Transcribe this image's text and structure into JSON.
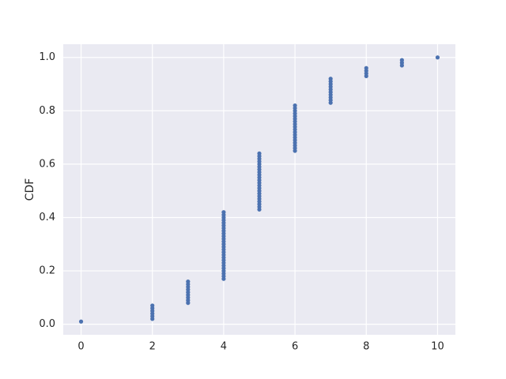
{
  "chart_data": {
    "type": "scatter",
    "ylabel": "CDF",
    "color": "#4c72b0",
    "grid": true,
    "x": [
      0,
      2,
      2,
      2,
      2,
      2,
      2,
      3,
      3,
      3,
      3,
      3,
      3,
      3,
      3,
      3,
      4,
      4,
      4,
      4,
      4,
      4,
      4,
      4,
      4,
      4,
      4,
      4,
      4,
      4,
      4,
      4,
      4,
      4,
      4,
      4,
      4,
      4,
      4,
      4,
      4,
      4,
      5,
      5,
      5,
      5,
      5,
      5,
      5,
      5,
      5,
      5,
      5,
      5,
      5,
      5,
      5,
      5,
      5,
      5,
      5,
      5,
      5,
      5,
      6,
      6,
      6,
      6,
      6,
      6,
      6,
      6,
      6,
      6,
      6,
      6,
      6,
      6,
      6,
      6,
      6,
      6,
      7,
      7,
      7,
      7,
      7,
      7,
      7,
      7,
      7,
      7,
      8,
      8,
      8,
      8,
      9,
      9,
      9,
      10
    ],
    "values": [
      0.01,
      0.02,
      0.03,
      0.04,
      0.05,
      0.06,
      0.07,
      0.08,
      0.09,
      0.1,
      0.11,
      0.12,
      0.13,
      0.14,
      0.15,
      0.16,
      0.17,
      0.18,
      0.19,
      0.2,
      0.21,
      0.22,
      0.23,
      0.24,
      0.25,
      0.26,
      0.27,
      0.28,
      0.29,
      0.3,
      0.31,
      0.32,
      0.33,
      0.34,
      0.35,
      0.36,
      0.37,
      0.38,
      0.39,
      0.4,
      0.41,
      0.42,
      0.43,
      0.44,
      0.45,
      0.46,
      0.47,
      0.48,
      0.49,
      0.5,
      0.51,
      0.52,
      0.53,
      0.54,
      0.55,
      0.56,
      0.57,
      0.58,
      0.59,
      0.6,
      0.61,
      0.62,
      0.63,
      0.64,
      0.65,
      0.66,
      0.67,
      0.68,
      0.69,
      0.7,
      0.71,
      0.72,
      0.73,
      0.74,
      0.75,
      0.76,
      0.77,
      0.78,
      0.79,
      0.8,
      0.81,
      0.82,
      0.83,
      0.84,
      0.85,
      0.86,
      0.87,
      0.88,
      0.89,
      0.9,
      0.91,
      0.92,
      0.93,
      0.94,
      0.95,
      0.96,
      0.97,
      0.98,
      0.99,
      1
    ],
    "xlim": [
      -0.5,
      10.5
    ],
    "xticks": [
      0,
      2,
      4,
      6,
      8,
      10
    ],
    "ylim": [
      -0.0395,
      1.0495
    ],
    "yticks": [
      {
        "value": 0,
        "label": "0.0"
      },
      0.2,
      0.4,
      0.6,
      0.8,
      {
        "value": 1,
        "label": "1.0"
      }
    ]
  }
}
